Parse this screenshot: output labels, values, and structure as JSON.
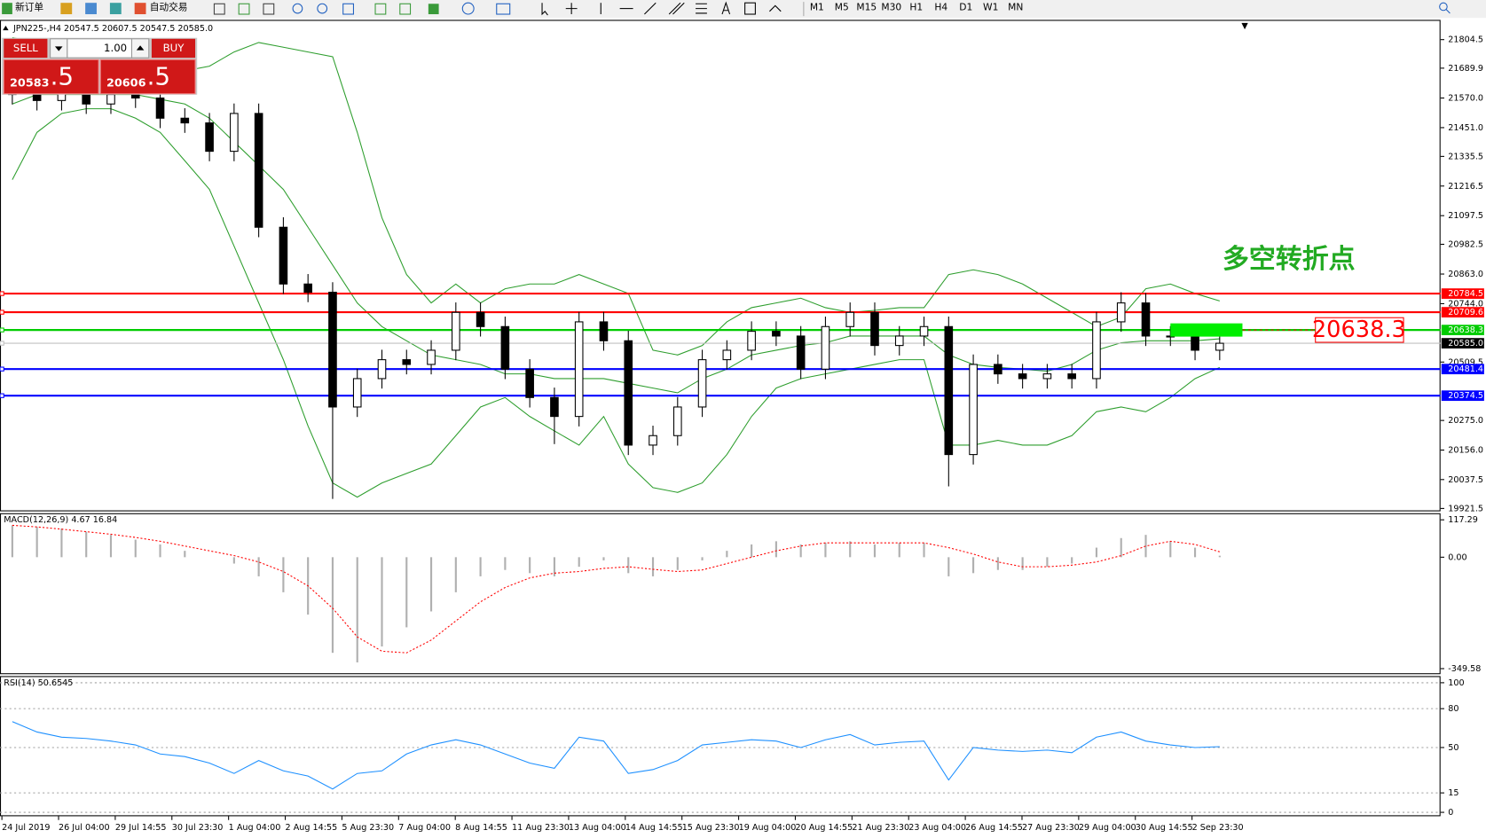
{
  "toolbar": {
    "new_order": "新订单",
    "auto_trading": "自动交易",
    "timeframes": [
      "M1",
      "M5",
      "M15",
      "M30",
      "H1",
      "H4",
      "D1",
      "W1",
      "MN"
    ]
  },
  "trade_panel": {
    "sell": "SELL",
    "buy": "BUY",
    "lots": "1.00",
    "sell_big": "20583",
    "sell_small": ".5",
    "buy_big": "20606",
    "buy_small": ".5"
  },
  "chart_data": [
    {
      "type": "candlestick",
      "title": "JPN225-,H4  20547.5 20607.5 20547.5 20585.0",
      "annotation": "多空转折点",
      "open": [
        21620,
        21584,
        21560,
        21603,
        21546,
        21584,
        21570,
        21489,
        21470,
        21356,
        21508,
        21051,
        20823,
        20790,
        20329,
        20443,
        20519,
        20500,
        20557,
        20709,
        20652,
        20481,
        20367,
        20291,
        20671,
        20595,
        20176,
        20214,
        20329,
        20519,
        20557,
        20633,
        20614,
        20481,
        20652,
        20709,
        20576,
        20614,
        20652,
        20138,
        20500,
        20462,
        20443,
        20462,
        20443,
        20671,
        20747,
        20614,
        20614,
        20557
      ],
      "high": [
        21660,
        21624,
        21643,
        21643,
        21624,
        21624,
        21610,
        21529,
        21510,
        21548,
        21548,
        21091,
        20863,
        20830,
        20483,
        20559,
        20559,
        20597,
        20749,
        20749,
        20692,
        20521,
        20407,
        20711,
        20711,
        20635,
        20254,
        20369,
        20559,
        20597,
        20673,
        20673,
        20654,
        20692,
        20749,
        20749,
        20654,
        20692,
        20692,
        20540,
        20540,
        20502,
        20502,
        20502,
        20711,
        20790,
        20787,
        20654,
        20654,
        20625
      ],
      "low": [
        21544,
        21520,
        21520,
        21506,
        21506,
        21530,
        21449,
        21430,
        21316,
        21316,
        21011,
        20783,
        20750,
        19960,
        20289,
        20403,
        20460,
        20460,
        20517,
        20612,
        20441,
        20327,
        20180,
        20251,
        20555,
        20136,
        20136,
        20174,
        20289,
        20479,
        20517,
        20574,
        20441,
        20441,
        20612,
        20536,
        20536,
        20574,
        20010,
        20098,
        20422,
        20403,
        20403,
        20403,
        20403,
        20631,
        20574,
        20574,
        20517,
        20517
      ],
      "close": [
        21584,
        21560,
        21603,
        21546,
        21584,
        21570,
        21489,
        21470,
        21356,
        21508,
        21051,
        20823,
        20790,
        20329,
        20443,
        20519,
        20500,
        20557,
        20709,
        20652,
        20481,
        20367,
        20291,
        20671,
        20595,
        20176,
        20214,
        20329,
        20519,
        20557,
        20633,
        20614,
        20481,
        20652,
        20709,
        20576,
        20614,
        20652,
        20138,
        20500,
        20462,
        20443,
        20462,
        20443,
        20671,
        20747,
        20614,
        20614,
        20557,
        20585
      ],
      "bands": {
        "color": "#2e9e2e",
        "upper": [
          21812,
          21793,
          21698,
          21690,
          21690,
          21698,
          21690,
          21679,
          21698,
          21755,
          21793,
          21774,
          21755,
          21736,
          21432,
          21089,
          20861,
          20747,
          20823,
          20747,
          20804,
          20823,
          20823,
          20861,
          20823,
          20785,
          20557,
          20538,
          20576,
          20671,
          20728,
          20747,
          20766,
          20728,
          20709,
          20717,
          20728,
          20728,
          20861,
          20880,
          20861,
          20823,
          20766,
          20709,
          20652,
          20690,
          20804,
          20823,
          20785,
          20755
        ],
        "middle": [
          21546,
          21584,
          21584,
          21584,
          21584,
          21584,
          21565,
          21546,
          21489,
          21394,
          21299,
          21203,
          21051,
          20899,
          20747,
          20652,
          20595,
          20538,
          20519,
          20500,
          20462,
          20462,
          20443,
          20443,
          20443,
          20424,
          20405,
          20386,
          20443,
          20481,
          20538,
          20557,
          20576,
          20587,
          20614,
          20614,
          20614,
          20614,
          20538,
          20500,
          20488,
          20481,
          20473,
          20500,
          20557,
          20587,
          20595,
          20595,
          20595,
          20603
        ],
        "lower": [
          21242,
          21432,
          21508,
          21527,
          21527,
          21489,
          21432,
          21318,
          21203,
          20975,
          20747,
          20519,
          20253,
          20024,
          19967,
          20024,
          20062,
          20100,
          20214,
          20329,
          20367,
          20291,
          20233,
          20176,
          20291,
          20100,
          20005,
          19986,
          20024,
          20138,
          20291,
          20405,
          20443,
          20462,
          20481,
          20500,
          20519,
          20519,
          20176,
          20176,
          20195,
          20176,
          20176,
          20214,
          20310,
          20329,
          20310,
          20367,
          20443,
          20488
        ]
      },
      "levels": [
        {
          "value": 20784.5,
          "color": "#ff0000"
        },
        {
          "value": 20709.6,
          "color": "#ff0000"
        },
        {
          "value": 20638.3,
          "color": "#00cc00"
        },
        {
          "value": 20585.0,
          "label": "20585.0",
          "color": "#c0c0c0",
          "box_color": "#000000"
        },
        {
          "value": 20481.4,
          "color": "#0000ff"
        },
        {
          "value": 20374.5,
          "color": "#0000ff"
        }
      ],
      "callout_level": 2,
      "ylim": [
        19910,
        21880
      ],
      "yticks": [
        21804.5,
        21689.9,
        {
          "value": 21570.0,
          "label": "21570.0"
        },
        {
          "value": 21451.0,
          "label": "21451.0"
        },
        21335.5,
        21216.5,
        21097.5,
        20982.5,
        {
          "value": 20863.0,
          "label": "20863.0"
        },
        {
          "value": 20744.0,
          "label": "20744.0"
        },
        20509.5,
        {
          "value": 20275.0,
          "label": "20275.0"
        },
        {
          "value": 20156.0,
          "label": "20156.0"
        },
        20037.5,
        19921.5
      ],
      "x_tick_labels": [
        "24 Jul 2019",
        "26 Jul 04:00",
        "29 Jul 14:55",
        "30 Jul 23:30",
        "1 Aug 04:00",
        "2 Aug 14:55",
        "5 Aug 23:30",
        "7 Aug 04:00",
        "8 Aug 14:55",
        "11 Aug 23:30",
        "13 Aug 04:00",
        "14 Aug 14:55",
        "15 Aug 23:30",
        "19 Aug 04:00",
        "20 Aug 14:55",
        "21 Aug 23:30",
        "23 Aug 04:00",
        "26 Aug 14:55",
        "27 Aug 23:30",
        "29 Aug 04:00",
        "30 Aug 14:55",
        "2 Sep 23:30"
      ]
    },
    {
      "type": "macd",
      "title": "MACD(12,26,9) 4.67 16.84",
      "histogram_color": "#b0b0b0",
      "signal_color": "#ff0000",
      "histogram": [
        100,
        95,
        90,
        80,
        70,
        55,
        40,
        20,
        0,
        -20,
        -60,
        -110,
        -180,
        -300,
        -330,
        -280,
        -220,
        -170,
        -110,
        -60,
        -40,
        -50,
        -60,
        -30,
        -10,
        -50,
        -60,
        -40,
        -10,
        20,
        40,
        50,
        40,
        45,
        50,
        40,
        45,
        45,
        -60,
        -50,
        -40,
        -40,
        -30,
        -20,
        30,
        60,
        70,
        50,
        30,
        4.67
      ],
      "signal": [
        100,
        95,
        88,
        80,
        72,
        62,
        50,
        35,
        20,
        5,
        -15,
        -45,
        -90,
        -160,
        -250,
        -295,
        -300,
        -260,
        -200,
        -140,
        -95,
        -65,
        -50,
        -45,
        -35,
        -30,
        -38,
        -45,
        -40,
        -20,
        0,
        20,
        35,
        45,
        45,
        45,
        45,
        45,
        30,
        10,
        -15,
        -30,
        -30,
        -25,
        -15,
        5,
        35,
        50,
        40,
        16.84
      ],
      "ylim": [
        -367,
        135
      ],
      "yticks": [
        117.29,
        {
          "value": 0,
          "label": "0.00"
        },
        -349.58
      ]
    },
    {
      "type": "line",
      "title": "RSI(14) 50.6545",
      "color": "#1e90ff",
      "grid": true,
      "values": [
        70,
        62,
        58,
        57,
        55,
        52,
        45,
        43,
        38,
        30,
        40,
        32,
        28,
        18,
        30,
        32,
        45,
        52,
        56,
        52,
        45,
        38,
        34,
        58,
        55,
        30,
        33,
        40,
        52,
        54,
        56,
        55,
        50,
        56,
        60,
        52,
        54,
        55,
        25,
        50,
        48,
        47,
        48,
        46,
        58,
        62,
        55,
        52,
        50,
        50.6545
      ],
      "ylim": [
        -3,
        104.4
      ],
      "yticks": [
        100,
        80,
        50,
        15,
        0
      ]
    }
  ]
}
